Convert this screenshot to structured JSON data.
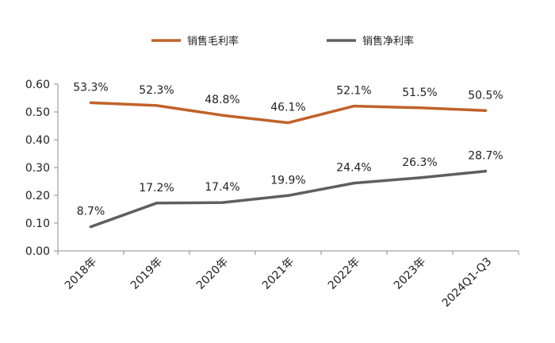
{
  "chart_data": {
    "type": "line",
    "categories": [
      "2018年",
      "2019年",
      "2020年",
      "2021年",
      "2022年",
      "2023年",
      "2024Q1-Q3"
    ],
    "series": [
      {
        "name": "销售毛利率",
        "color": "#C0622A",
        "values": [
          0.533,
          0.523,
          0.488,
          0.461,
          0.521,
          0.515,
          0.505
        ],
        "labels": [
          "53.3%",
          "52.3%",
          "48.8%",
          "46.1%",
          "52.1%",
          "51.5%",
          "50.5%"
        ]
      },
      {
        "name": "销售净利率",
        "color": "#5F5F5F",
        "values": [
          0.087,
          0.172,
          0.174,
          0.199,
          0.244,
          0.263,
          0.287
        ],
        "labels": [
          "8.7%",
          "17.2%",
          "17.4%",
          "19.9%",
          "24.4%",
          "26.3%",
          "28.7%"
        ]
      }
    ],
    "yticks": [
      "0.00",
      "0.10",
      "0.20",
      "0.30",
      "0.40",
      "0.50",
      "0.60"
    ],
    "ylim": [
      0,
      0.6
    ],
    "legend_position": "top",
    "grid": false
  }
}
